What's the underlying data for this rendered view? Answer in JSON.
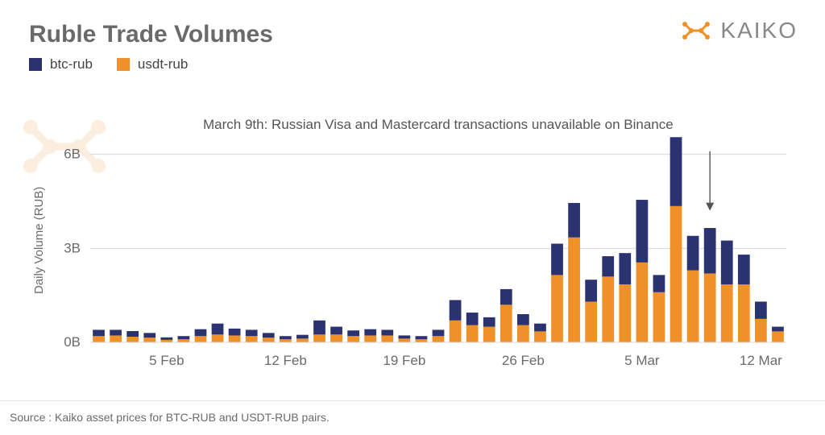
{
  "title": "Ruble Trade Volumes",
  "logo_text": "KAIKO",
  "legend": [
    {
      "label": "btc-rub",
      "color": "#2a3270"
    },
    {
      "label": "usdt-rub",
      "color": "#f09028"
    }
  ],
  "ylabel": "Daily Volume (RUB)",
  "annotation": "March 9th: Russian Visa and Mastercard transactions unavailable on Binance",
  "source": "Source : Kaiko asset prices  for BTC-RUB and USDT-RUB pairs.",
  "chart": {
    "type": "stacked-bar",
    "colors": {
      "btc": "#2a3270",
      "usdt": "#f09028",
      "grid": "#d8d8d8",
      "axis_text": "#6a6a6a",
      "background": "#ffffff"
    },
    "ylim": [
      0,
      7.2
    ],
    "yticks": [
      0,
      3,
      6
    ],
    "ytick_labels": [
      "0B",
      "3B",
      "6B"
    ],
    "bar_gap_ratio": 0.3,
    "axis_fontsize": 17,
    "xticks": [
      {
        "index": 4,
        "label": "5 Feb"
      },
      {
        "index": 11,
        "label": "12 Feb"
      },
      {
        "index": 18,
        "label": "19 Feb"
      },
      {
        "index": 25,
        "label": "26 Feb"
      },
      {
        "index": 32,
        "label": "5 Mar"
      },
      {
        "index": 39,
        "label": "12 Mar"
      }
    ],
    "annotation_arrow": {
      "target_index": 36,
      "from_y": 6.1,
      "to_y": 4.2
    },
    "data": [
      {
        "usdt": 0.2,
        "btc": 0.2
      },
      {
        "usdt": 0.22,
        "btc": 0.18
      },
      {
        "usdt": 0.18,
        "btc": 0.18
      },
      {
        "usdt": 0.15,
        "btc": 0.15
      },
      {
        "usdt": 0.08,
        "btc": 0.08
      },
      {
        "usdt": 0.1,
        "btc": 0.1
      },
      {
        "usdt": 0.2,
        "btc": 0.22
      },
      {
        "usdt": 0.25,
        "btc": 0.35
      },
      {
        "usdt": 0.22,
        "btc": 0.22
      },
      {
        "usdt": 0.2,
        "btc": 0.2
      },
      {
        "usdt": 0.15,
        "btc": 0.15
      },
      {
        "usdt": 0.1,
        "btc": 0.1
      },
      {
        "usdt": 0.12,
        "btc": 0.12
      },
      {
        "usdt": 0.25,
        "btc": 0.45
      },
      {
        "usdt": 0.25,
        "btc": 0.25
      },
      {
        "usdt": 0.2,
        "btc": 0.18
      },
      {
        "usdt": 0.22,
        "btc": 0.2
      },
      {
        "usdt": 0.22,
        "btc": 0.18
      },
      {
        "usdt": 0.12,
        "btc": 0.1
      },
      {
        "usdt": 0.1,
        "btc": 0.1
      },
      {
        "usdt": 0.2,
        "btc": 0.2
      },
      {
        "usdt": 0.7,
        "btc": 0.65
      },
      {
        "usdt": 0.55,
        "btc": 0.4
      },
      {
        "usdt": 0.5,
        "btc": 0.3
      },
      {
        "usdt": 1.2,
        "btc": 0.5
      },
      {
        "usdt": 0.55,
        "btc": 0.35
      },
      {
        "usdt": 0.35,
        "btc": 0.25
      },
      {
        "usdt": 2.15,
        "btc": 1.0
      },
      {
        "usdt": 3.35,
        "btc": 1.1
      },
      {
        "usdt": 1.3,
        "btc": 0.7
      },
      {
        "usdt": 2.1,
        "btc": 0.65
      },
      {
        "usdt": 1.85,
        "btc": 1.0
      },
      {
        "usdt": 2.55,
        "btc": 2.0
      },
      {
        "usdt": 1.6,
        "btc": 0.55
      },
      {
        "usdt": 4.35,
        "btc": 2.2
      },
      {
        "usdt": 2.3,
        "btc": 1.1
      },
      {
        "usdt": 2.2,
        "btc": 1.45
      },
      {
        "usdt": 1.85,
        "btc": 1.4
      },
      {
        "usdt": 1.85,
        "btc": 0.95
      },
      {
        "usdt": 0.75,
        "btc": 0.55
      },
      {
        "usdt": 0.35,
        "btc": 0.15
      }
    ]
  }
}
